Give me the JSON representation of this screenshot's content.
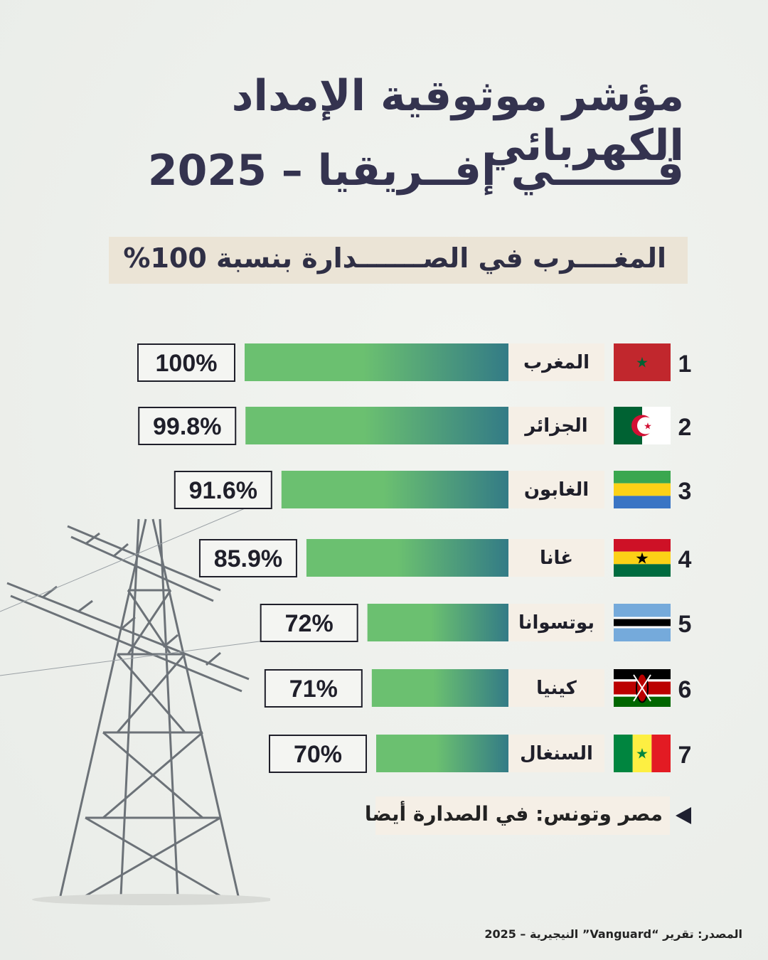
{
  "title_line1": "مؤشر موثوقية الإمداد الكهربائي",
  "title_line2": "فـــــــي إفــريقيا – 2025",
  "subtitle": "المغــــرب في الصـــــــدارة بنسبة 100%",
  "note": "مصر وتونس: في الصدارة أيضا",
  "source": "المصدر: تقرير “Vanguard” النيجيرية – 2025",
  "icons": {
    "tower": "power-pylon-icon",
    "arrow": "triangle-left-icon"
  },
  "colors": {
    "title": "#34334f",
    "bar_start": "#6bc070",
    "bar_end": "#337b86",
    "subtitle_bg": "#ebe4d6",
    "label_bg": "#f5efe6"
  },
  "chart_data": {
    "type": "bar",
    "orientation": "horizontal",
    "ranks": [
      "1",
      "2",
      "3",
      "4",
      "5",
      "6",
      "7"
    ],
    "categories": [
      "المغرب",
      "الجزائر",
      "الغابون",
      "غانا",
      "بوتسوانا",
      "كينيا",
      "السنغال"
    ],
    "flags": [
      "morocco",
      "algeria",
      "gabon",
      "ghana",
      "botswana",
      "kenya",
      "senegal"
    ],
    "values": [
      100,
      99.8,
      91.6,
      85.9,
      72,
      71,
      70
    ],
    "value_labels": [
      "100%",
      "99.8%",
      "91.6%",
      "85.9%",
      "72%",
      "71%",
      "70%"
    ],
    "unit": "%"
  }
}
